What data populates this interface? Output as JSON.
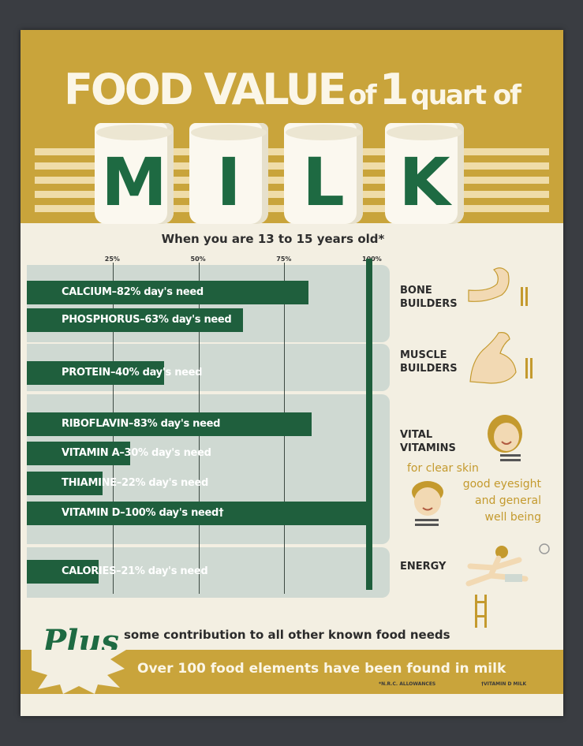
{
  "title": {
    "part1": "FOOD VALUE",
    "part2": "of",
    "part3": "1",
    "part4": "quart of"
  },
  "glass_letters": [
    "M",
    "I",
    "L",
    "K"
  ],
  "subtitle": "When you are 13 to 15 years old*",
  "chart_data": {
    "type": "bar",
    "orientation": "horizontal",
    "xlim": [
      0,
      100
    ],
    "ticks": [
      "25%",
      "50%",
      "75%",
      "100%"
    ],
    "tick_values": [
      25,
      50,
      75,
      100
    ],
    "categories": [
      "CALCIUM",
      "PHOSPHORUS",
      "PROTEIN",
      "RIBOFLAVIN",
      "VITAMIN A",
      "THIAMINE",
      "VITAMIN D",
      "CALORIES"
    ],
    "values": [
      82,
      63,
      40,
      83,
      30,
      22,
      100,
      21
    ],
    "bar_labels": [
      "CALCIUM–82% day's need",
      "PHOSPHORUS–63% day's need",
      "PROTEIN–40% day's need",
      "RIBOFLAVIN–83% day's need",
      "VITAMIN A–30% day's need",
      "THIAMINE–22% day's need",
      "VITAMIN D–100% day's need†",
      "CALORIES–21% day's need"
    ],
    "groups": [
      {
        "label_line1": "BONE",
        "label_line2": "BUILDERS"
      },
      {
        "label_line1": "MUSCLE",
        "label_line2": "BUILDERS"
      },
      {
        "label_line1": "VITAL",
        "label_line2": "VITAMINS"
      },
      {
        "label_line1": "ENERGY",
        "label_line2": ""
      }
    ]
  },
  "vitamin_notes": [
    "for clear skin",
    "good eyesight",
    "and general",
    "well being"
  ],
  "plus": "Plus",
  "contribution": "some contribution to all other known food needs",
  "footer_main": "Over 100 food elements have been found in milk",
  "footnote_1": "*N.R.C. ALLOWANCES",
  "footnote_2": "†VITAMIN D MILK",
  "colors": {
    "gold": "#c9a43b",
    "green": "#1f5f3d",
    "band": "#cfd9d2",
    "paper": "#f3efe2",
    "annotation": "#c49a2e"
  }
}
